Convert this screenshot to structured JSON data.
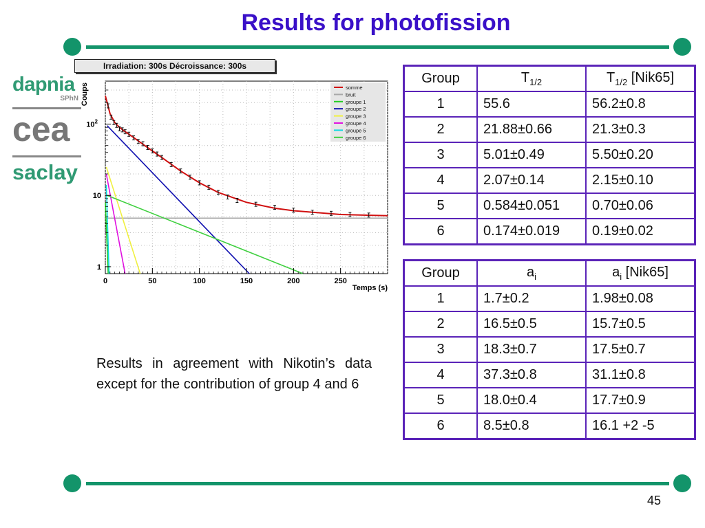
{
  "slide": {
    "title": "Results for photofission",
    "page_number": "45",
    "note": "Results in agreement with Nikotin’s data except for the contribution of group 4 and 6",
    "theme_colors": {
      "title": "#3a10c8",
      "rule": "#13946a",
      "table_border": "#5a23b8"
    }
  },
  "logos": {
    "dapnia": "dapnia",
    "sphn": "SPhN",
    "cea": "cea",
    "saclay": "saclay"
  },
  "plot_header": "Irradiation: 300s Décroissance: 300s",
  "chart_data": {
    "type": "line",
    "xlabel": "Temps (s)",
    "ylabel": "Coups",
    "xlim": [
      0,
      300
    ],
    "ylim": [
      0.8,
      400
    ],
    "yscale": "log",
    "x_ticks": [
      "0",
      "50",
      "100",
      "150",
      "200",
      "250"
    ],
    "y_ticks": [
      {
        "value": 1,
        "label": "1"
      },
      {
        "value": 10,
        "label": "10"
      },
      {
        "value": 100,
        "label": "10",
        "sup": "2"
      }
    ],
    "legend": {
      "position": "top-right"
    },
    "series": [
      {
        "name": "somme",
        "color": "#d01010",
        "x": [
          0,
          5,
          10,
          15,
          20,
          30,
          40,
          50,
          60,
          80,
          100,
          120,
          150,
          180,
          200,
          250,
          300
        ],
        "y": [
          250,
          140,
          105,
          90,
          80,
          65,
          52,
          42,
          34,
          22,
          15,
          11,
          8,
          6.6,
          6.1,
          5.4,
          5.2
        ]
      },
      {
        "name": "bruit",
        "color": "#a8a8a8",
        "x": [
          0,
          300
        ],
        "y": [
          4.8,
          4.8
        ]
      },
      {
        "name": "groupe 1",
        "color": "#22cc22",
        "x": [
          0,
          3
        ],
        "y": [
          8,
          0.8
        ]
      },
      {
        "name": "groupe 2",
        "color": "#1010b0",
        "x": [
          2,
          153
        ],
        "y": [
          95,
          0.8
        ]
      },
      {
        "name": "groupe 3",
        "color": "#f0f040",
        "x": [
          1,
          37
        ],
        "y": [
          25,
          0.8
        ]
      },
      {
        "name": "groupe 4",
        "color": "#e010e0",
        "x": [
          1,
          21
        ],
        "y": [
          20,
          0.8
        ]
      },
      {
        "name": "groupe 5",
        "color": "#10d8e0",
        "x": [
          1,
          4
        ],
        "y": [
          14,
          0.8
        ]
      },
      {
        "name": "groupe 6",
        "color": "#40d040",
        "x": [
          2,
          210
        ],
        "y": [
          10,
          0.8
        ]
      }
    ],
    "data_points": {
      "x": [
        3,
        6,
        9,
        12,
        15,
        18,
        21,
        25,
        30,
        35,
        40,
        45,
        50,
        55,
        60,
        70,
        80,
        90,
        100,
        110,
        120,
        130,
        140,
        160,
        180,
        200,
        220,
        240,
        260,
        280
      ],
      "y": [
        180,
        125,
        105,
        96,
        86,
        83,
        78,
        72,
        64,
        57,
        53,
        47,
        42,
        38,
        34,
        27,
        22,
        18,
        15,
        13,
        11,
        9.5,
        8.5,
        7.5,
        6.8,
        6.2,
        5.8,
        5.6,
        5.4,
        5.3
      ]
    }
  },
  "table1": {
    "headers": [
      {
        "main": "Group",
        "sub": "",
        "suffix": ""
      },
      {
        "main": "T",
        "sub": "1/2",
        "suffix": ""
      },
      {
        "main": "T",
        "sub": "1/2",
        "suffix": " [Nik65]"
      }
    ],
    "rows": [
      [
        "1",
        "55.6",
        "56.2±0.8"
      ],
      [
        "2",
        "21.88±0.66",
        "21.3±0.3"
      ],
      [
        "3",
        "5.01±0.49",
        "5.50±0.20"
      ],
      [
        "4",
        "2.07±0.14",
        "2.15±0.10"
      ],
      [
        "5",
        "0.584±0.051",
        "0.70±0.06"
      ],
      [
        "6",
        "0.174±0.019",
        "0.19±0.02"
      ]
    ]
  },
  "table2": {
    "headers": [
      {
        "main": "Group",
        "sub": "",
        "suffix": ""
      },
      {
        "main": "a",
        "sub": "i",
        "suffix": ""
      },
      {
        "main": "a",
        "sub": "i",
        "suffix": " [Nik65]"
      }
    ],
    "rows": [
      [
        "1",
        "1.7±0.2",
        "1.98±0.08"
      ],
      [
        "2",
        "16.5±0.5",
        "15.7±0.5"
      ],
      [
        "3",
        "18.3±0.7",
        "17.5±0.7"
      ],
      [
        "4",
        "37.3±0.8",
        "31.1±0.8"
      ],
      [
        "5",
        "18.0±0.4",
        "17.7±0.9"
      ],
      [
        "6",
        "8.5±0.8",
        "16.1 +2 -5"
      ]
    ]
  }
}
